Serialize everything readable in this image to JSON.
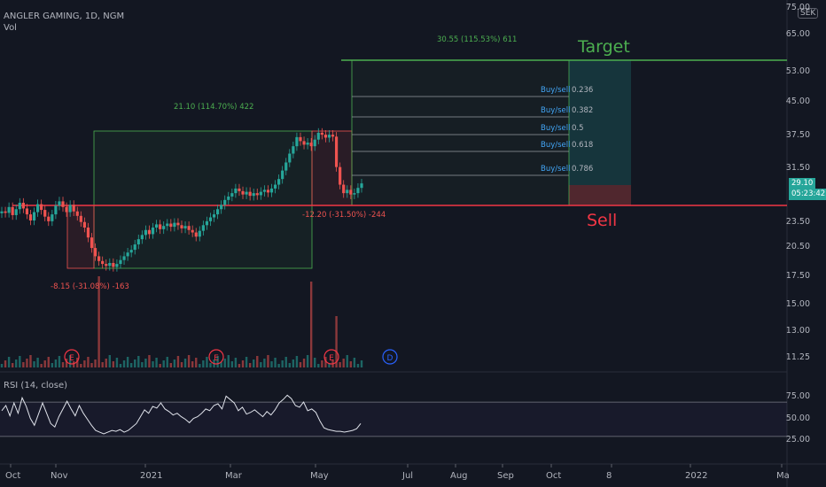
{
  "header": {
    "symbol": "ANGLER GAMING, 1D, NGM",
    "volume_label": "Vol",
    "currency": "SEK"
  },
  "price_axis": {
    "labels": [
      "75.00",
      "65.00",
      "53.00",
      "45.00",
      "37.50",
      "31.50",
      "23.50",
      "20.50",
      "17.50",
      "15.00",
      "13.00",
      "11.25"
    ],
    "last_price": "29.10",
    "countdown": "05:23:42"
  },
  "rsi": {
    "label": "RSI (14, close)",
    "axis_labels": [
      "75.00",
      "50.00",
      "25.00"
    ]
  },
  "time_axis": {
    "labels": [
      "Oct",
      "Nov",
      "2021",
      "Mar",
      "May",
      "Jul",
      "Aug",
      "Sep",
      "Oct",
      "8",
      "2022",
      "Ma"
    ]
  },
  "annotations": {
    "target_label": "Target",
    "sell_label": "Sell",
    "target_measure": "30.55 (115.53%) 611",
    "up_measure": "21.10 (114.70%) 422",
    "down_measure": "-8.15 (-31.08%) -163",
    "pullback_measure": "-12.20 (-31.50%) -244",
    "fib_levels": [
      {
        "tag": "Buy/sell",
        "value": "0.236"
      },
      {
        "tag": "Buy/sell",
        "value": "0.382"
      },
      {
        "tag": "Buy/sell",
        "value": "0.5"
      },
      {
        "tag": "Buy/sell",
        "value": "0.618"
      },
      {
        "tag": "Buy/sell",
        "value": "0.786"
      }
    ],
    "event_markers": [
      "E",
      "E",
      "E",
      "D"
    ]
  },
  "colors": {
    "background": "#131722",
    "up": "#26a69a",
    "down": "#ef5350",
    "target": "#4caf50",
    "sell": "#f23645",
    "fib_text": "#42a5f5"
  },
  "chart_data": {
    "type": "candlestick",
    "title": "ANGLER GAMING, 1D, NGM",
    "closes": [
      25,
      24.8,
      25.6,
      24.5,
      25.3,
      26.2,
      25.4,
      24.6,
      23.8,
      24.9,
      26,
      25.2,
      24.3,
      23.7,
      24.6,
      25.8,
      26.4,
      25.6,
      24.9,
      25.9,
      25,
      24.4,
      23.6,
      22.9,
      21.7,
      20.5,
      19.6,
      19.1,
      18.8,
      18.6,
      18.9,
      18.5,
      18.8,
      19.2,
      19.6,
      20,
      20.3,
      20.9,
      21.5,
      22,
      22.6,
      22.1,
      22.9,
      23.3,
      22.7,
      23.1,
      23.4,
      23,
      23.5,
      23.2,
      22.8,
      23.1,
      22.6,
      22.3,
      21.8,
      22.5,
      23.2,
      23.7,
      24.2,
      24.6,
      25.3,
      25.9,
      26.6,
      27.1,
      27.6,
      28.3,
      27.9,
      27.4,
      27.8,
      27.2,
      27.6,
      27.3,
      27.8,
      28.1,
      27.7,
      28.3,
      28.9,
      29.8,
      31.2,
      32.6,
      34.2,
      35.6,
      37.4,
      36.6,
      35.9,
      36.3,
      35.6,
      36.9,
      38.3,
      37.9,
      37.3,
      37.9,
      37.5,
      31.8,
      28.9,
      27.6,
      28.1,
      27.4,
      27.6,
      28.4,
      29.1
    ],
    "yrange": [
      11.25,
      75
    ],
    "x_ticks": [
      "Oct",
      "Nov",
      "2021",
      "Mar",
      "May",
      "Jul",
      "Aug",
      "Sep",
      "Oct",
      "8",
      "2022",
      "Ma"
    ],
    "rsi_series": [
      60,
      66,
      54,
      69,
      57,
      75,
      65,
      51,
      43,
      56,
      69,
      57,
      45,
      41,
      53,
      62,
      71,
      62,
      54,
      66,
      57,
      50,
      43,
      37,
      35,
      33,
      35,
      37,
      36,
      38,
      35,
      37,
      41,
      45,
      53,
      61,
      57,
      65,
      63,
      69,
      62,
      59,
      55,
      57,
      53,
      50,
      46,
      51,
      53,
      57,
      62,
      60,
      66,
      68,
      62,
      77,
      73,
      69,
      60,
      64,
      56,
      58,
      61,
      57,
      53,
      59,
      55,
      61,
      69,
      73,
      78,
      74,
      66,
      64,
      70,
      60,
      62,
      58,
      48,
      40,
      38,
      37,
      36,
      36,
      35,
      36,
      37,
      39,
      45
    ],
    "rsi_ylim": [
      0,
      100
    ],
    "levels": {
      "target": 58.6,
      "sell": 25.8
    }
  }
}
